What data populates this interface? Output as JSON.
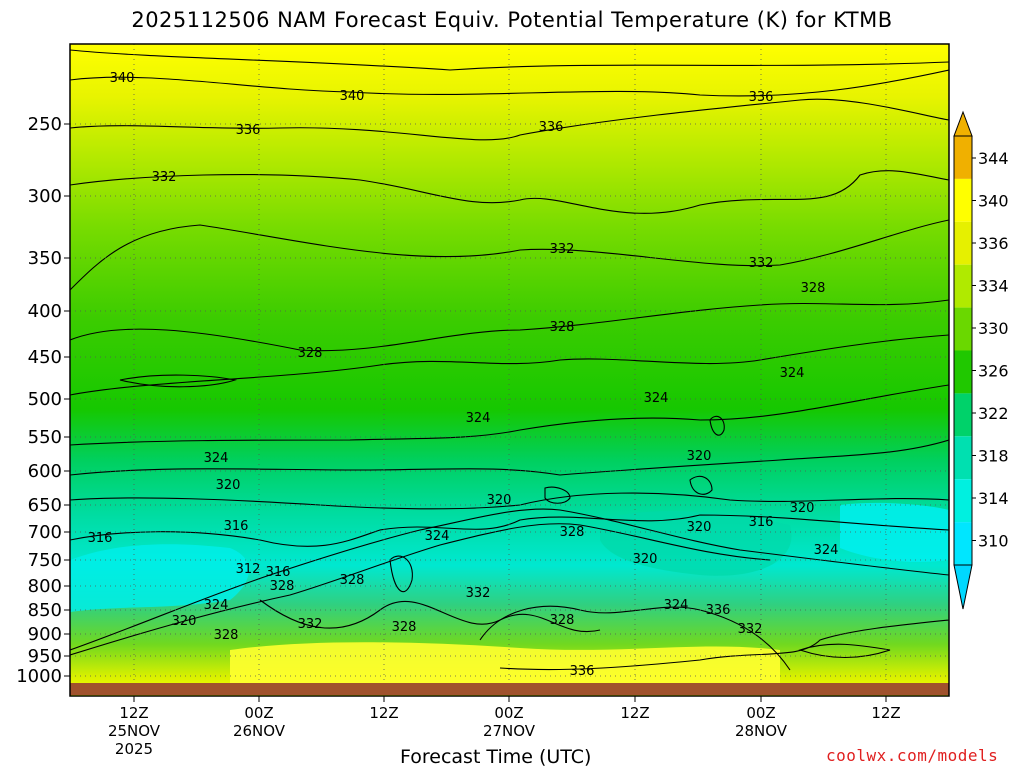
{
  "title": "2025112506 NAM Forecast Equiv. Potential Temperature (K) for KTMB",
  "watermark": "coolwx.com/models",
  "chart_data": {
    "type": "heatmap",
    "title": "2025112506 NAM Forecast Equiv. Potential Temperature (K) for KTMB",
    "xlabel": "Forecast Time (UTC)",
    "ylabel": "",
    "y_ticks": [
      "250",
      "300",
      "350",
      "400",
      "450",
      "500",
      "550",
      "600",
      "650",
      "700",
      "750",
      "800",
      "850",
      "900",
      "950",
      "1000"
    ],
    "x_ticks": [
      {
        "line1": "12Z",
        "line2": "25NOV",
        "line3": "2025"
      },
      {
        "line1": "00Z",
        "line2": "26NOV",
        "line3": ""
      },
      {
        "line1": "12Z",
        "line2": "",
        "line3": ""
      },
      {
        "line1": "00Z",
        "line2": "27NOV",
        "line3": ""
      },
      {
        "line1": "12Z",
        "line2": "",
        "line3": ""
      },
      {
        "line1": "00Z",
        "line2": "28NOV",
        "line3": ""
      },
      {
        "line1": "12Z",
        "line2": "",
        "line3": ""
      }
    ],
    "colorbar_ticks": [
      "344",
      "340",
      "336",
      "334",
      "330",
      "326",
      "322",
      "318",
      "314",
      "310"
    ],
    "colorbar_colors": [
      "#f0b000",
      "#ffff00",
      "#e6f000",
      "#b0ea00",
      "#6ad800",
      "#20c800",
      "#00d26a",
      "#00e0b0",
      "#00f0e0",
      "#00e6ff"
    ],
    "grid": true,
    "contour_labels": [
      {
        "value": "340",
        "level": "upper"
      },
      {
        "value": "336",
        "level": "upper"
      },
      {
        "value": "332",
        "level": "mid"
      },
      {
        "value": "328",
        "level": "mid"
      },
      {
        "value": "324",
        "level": "mid"
      },
      {
        "value": "320",
        "level": "low"
      },
      {
        "value": "316",
        "level": "low"
      },
      {
        "value": "312",
        "level": "low"
      }
    ]
  }
}
